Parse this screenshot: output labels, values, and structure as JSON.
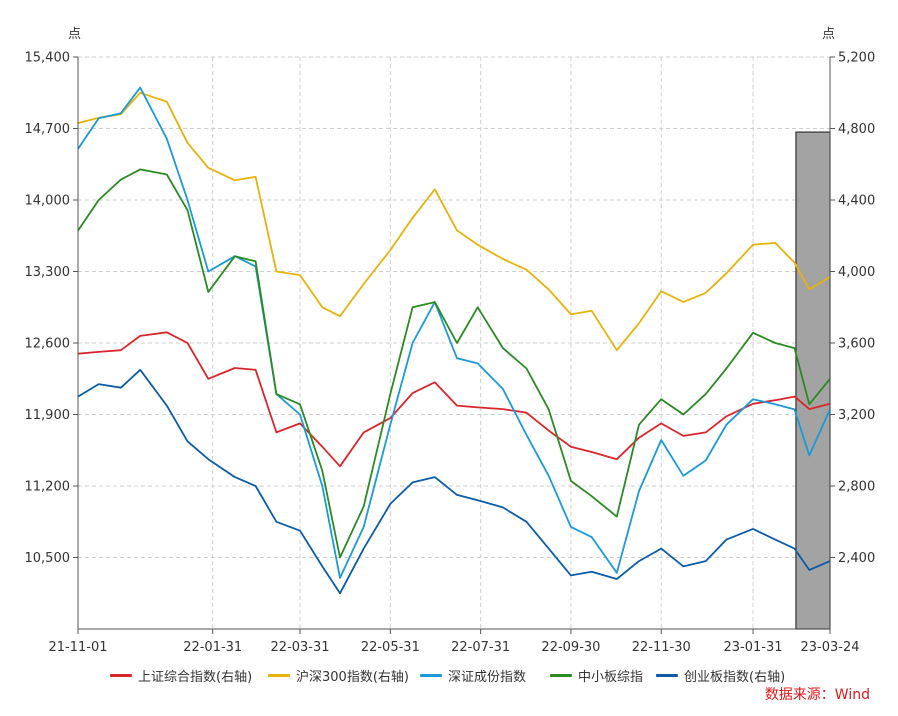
{
  "chart_data": {
    "type": "line",
    "left_axis": {
      "unit": "点",
      "ticks": [
        "15,400",
        "14,700",
        "14,000",
        "13,300",
        "12,600",
        "11,900",
        "11,200",
        "10,500"
      ],
      "ylim": [
        9800,
        15400
      ]
    },
    "right_axis": {
      "unit": "点",
      "ticks": [
        "5,200",
        "4,800",
        "4,400",
        "4,000",
        "3,600",
        "3,200",
        "2,800",
        "2,400"
      ],
      "ylim": [
        2000,
        5200
      ]
    },
    "x_ticks": [
      "21-11-01",
      "22-01-31",
      "22-03-31",
      "22-05-31",
      "22-07-31",
      "22-09-30",
      "22-11-30",
      "23-01-31",
      "23-03-24"
    ],
    "grid": true,
    "highlight": {
      "from": "23-03-01",
      "to": "23-03-24",
      "ylim_right": [
        2000,
        4780
      ]
    },
    "x": [
      "21-11-01",
      "21-11-15",
      "21-11-30",
      "21-12-13",
      "21-12-31",
      "22-01-14",
      "22-01-28",
      "22-02-15",
      "22-03-01",
      "22-03-15",
      "22-03-31",
      "22-04-15",
      "22-04-27",
      "22-05-13",
      "22-05-31",
      "22-06-15",
      "22-06-30",
      "22-07-15",
      "22-07-29",
      "22-08-15",
      "22-08-31",
      "22-09-15",
      "22-09-30",
      "22-10-14",
      "22-10-31",
      "22-11-15",
      "22-11-30",
      "22-12-15",
      "22-12-30",
      "23-01-13",
      "23-01-31",
      "23-02-15",
      "23-02-28",
      "23-03-10",
      "23-03-24"
    ],
    "series": [
      {
        "name": "上证综合指数(右轴)",
        "axis": "right",
        "color": "#d9262c",
        "values": [
          3540,
          3550,
          3560,
          3640,
          3660,
          3600,
          3400,
          3460,
          3450,
          3100,
          3150,
          3020,
          2910,
          3100,
          3180,
          3320,
          3380,
          3250,
          3240,
          3230,
          3210,
          3110,
          3020,
          2990,
          2950,
          3070,
          3150,
          3080,
          3100,
          3190,
          3260,
          3280,
          3300,
          3230,
          3260
        ]
      },
      {
        "name": "沪深300指数(右轴)",
        "axis": "right",
        "color": "#e5b30b",
        "values": [
          4830,
          4860,
          4880,
          5000,
          4950,
          4720,
          4580,
          4510,
          4530,
          4000,
          3980,
          3800,
          3750,
          3930,
          4120,
          4300,
          4460,
          4230,
          4150,
          4070,
          4010,
          3900,
          3760,
          3780,
          3560,
          3710,
          3890,
          3830,
          3880,
          3990,
          4150,
          4160,
          4050,
          3900,
          3970
        ]
      },
      {
        "name": "深证成份指数",
        "axis": "left",
        "color": "#1a9ad6",
        "values": [
          14500,
          14800,
          14850,
          15100,
          14600,
          14000,
          13300,
          13450,
          13350,
          12100,
          11900,
          11200,
          10300,
          10800,
          11800,
          12600,
          13000,
          12450,
          12400,
          12150,
          11700,
          11300,
          10800,
          10700,
          10350,
          11150,
          11650,
          11300,
          11450,
          11800,
          12050,
          12000,
          11950,
          11500,
          11950
        ]
      },
      {
        "name": "中小板综指",
        "axis": "left",
        "color": "#2b8a24",
        "values": [
          13700,
          14000,
          14200,
          14300,
          14250,
          13900,
          13100,
          13450,
          13400,
          12100,
          12000,
          11350,
          10500,
          11000,
          12100,
          12950,
          13000,
          12600,
          12950,
          12550,
          12350,
          11950,
          11250,
          11100,
          10900,
          11800,
          12050,
          11900,
          12100,
          12350,
          12700,
          12600,
          12550,
          12000,
          12250
        ]
      },
      {
        "name": "创业板指数(右轴)",
        "axis": "right",
        "color": "#0c5ca8",
        "values": [
          3300,
          3370,
          3350,
          3450,
          3250,
          3050,
          2950,
          2850,
          2800,
          2600,
          2550,
          2350,
          2200,
          2450,
          2700,
          2820,
          2850,
          2750,
          2720,
          2680,
          2600,
          2450,
          2300,
          2320,
          2280,
          2380,
          2450,
          2350,
          2380,
          2500,
          2560,
          2500,
          2450,
          2330,
          2380
        ]
      }
    ]
  },
  "labels": {
    "left_unit": "点",
    "right_unit": "点",
    "source": "数据来源：Wind"
  }
}
